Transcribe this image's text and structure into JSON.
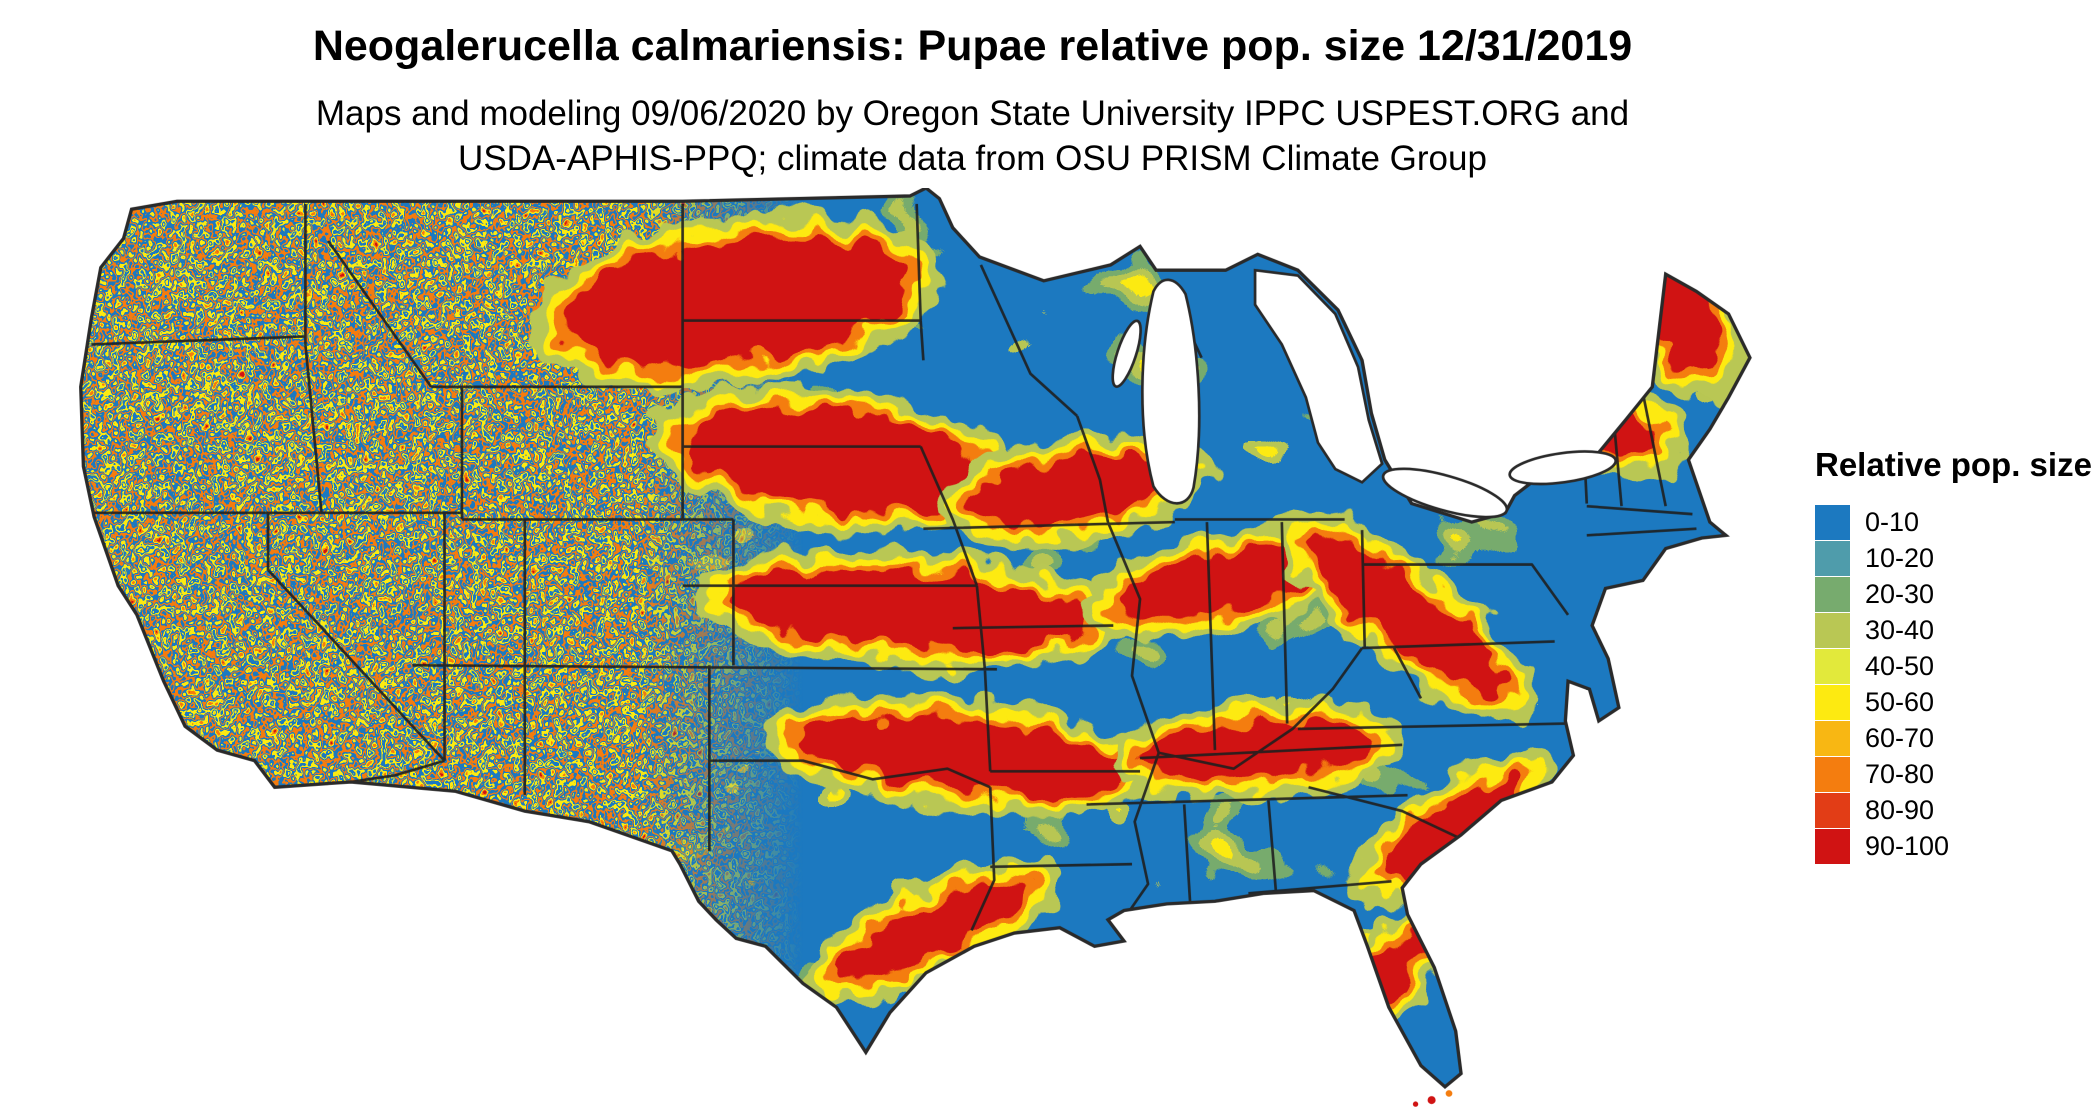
{
  "header": {
    "title": "Neogalerucella calmariensis: Pupae relative pop. size 12/31/2019",
    "subtitle_line1": "Maps and modeling 09/06/2020 by Oregon State University IPPC USPEST.ORG and",
    "subtitle_line2": "USDA-APHIS-PPQ; climate data from OSU PRISM Climate Group"
  },
  "map": {
    "region": "Continental United States"
  },
  "legend": {
    "title": "Relative pop. size",
    "items": [
      {
        "label": "0-10",
        "color": "#1c79c0"
      },
      {
        "label": "10-20",
        "color": "#4f9cab"
      },
      {
        "label": "20-30",
        "color": "#77ab6e"
      },
      {
        "label": "30-40",
        "color": "#b9c754"
      },
      {
        "label": "40-50",
        "color": "#e2e93b"
      },
      {
        "label": "50-60",
        "color": "#fdea11"
      },
      {
        "label": "60-70",
        "color": "#f8b713"
      },
      {
        "label": "70-80",
        "color": "#f47d0f"
      },
      {
        "label": "80-90",
        "color": "#e23d16"
      },
      {
        "label": "90-100",
        "color": "#d01313"
      }
    ]
  }
}
